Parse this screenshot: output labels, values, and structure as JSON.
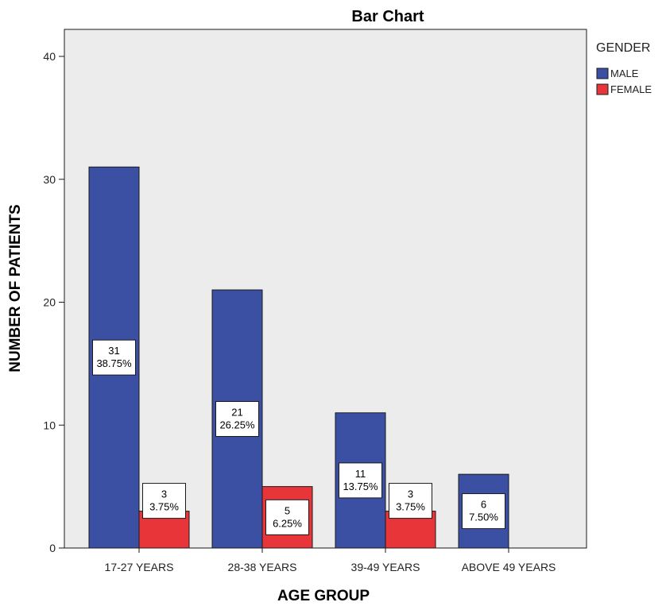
{
  "chart_data": {
    "type": "bar",
    "title": "Bar Chart",
    "xlabel": "AGE GROUP",
    "ylabel": "NUMBER OF PATIENTS",
    "categories": [
      "17-27 YEARS",
      "28-38 YEARS",
      "39-49 YEARS",
      "ABOVE 49 YEARS"
    ],
    "yticks": [
      "0",
      "10",
      "20",
      "30",
      "40"
    ],
    "ylim": [
      0,
      40
    ],
    "grid": false,
    "legend_position": "right",
    "legend_title": "GENDER",
    "series": [
      {
        "name": "MALE",
        "color": "#3b50a3",
        "values": [
          31,
          21,
          11,
          6
        ],
        "labels": [
          [
            "31",
            "38.75%"
          ],
          [
            "21",
            "26.25%"
          ],
          [
            "11",
            "13.75%"
          ],
          [
            "6",
            "7.50%"
          ]
        ]
      },
      {
        "name": "FEMALE",
        "color": "#e8353a",
        "values": [
          3,
          5,
          3,
          null
        ],
        "labels": [
          [
            "3",
            "3.75%"
          ],
          [
            "5",
            "6.25%"
          ],
          [
            "3",
            "3.75%"
          ],
          null
        ]
      }
    ]
  }
}
